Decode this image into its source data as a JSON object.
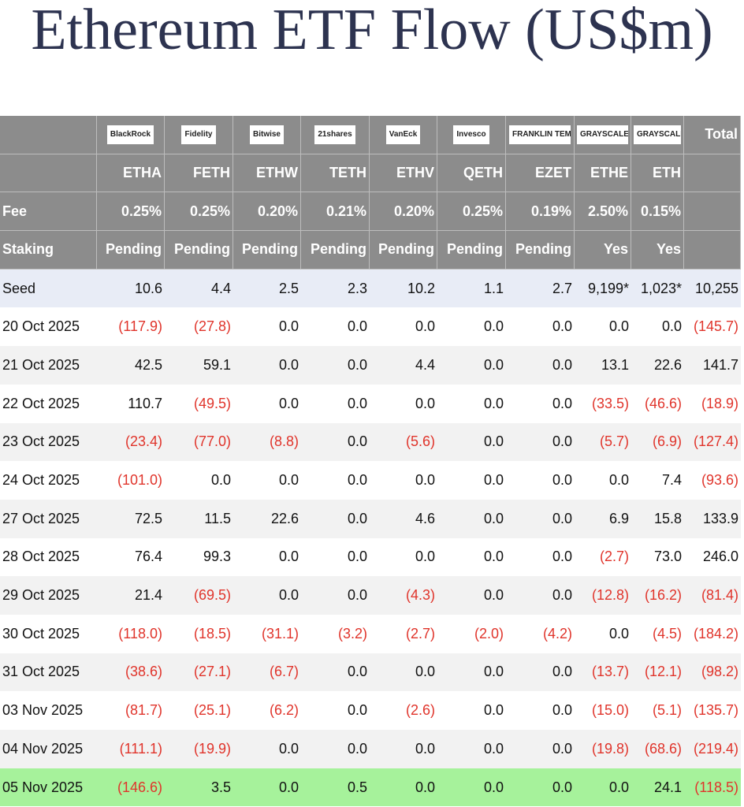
{
  "header": {
    "title": "Ethereum ETF Flow (US$m)"
  },
  "table": {
    "issuers": [
      "BlackRock",
      "Fidelity",
      "Bitwise",
      "21shares",
      "VanEck",
      "Invesco",
      "FRANKLIN TEMPLETON",
      "GRAYSCALE",
      "GRAYSCALE"
    ],
    "total_label": "Total",
    "tickers": [
      "ETHA",
      "FETH",
      "ETHW",
      "TETH",
      "ETHV",
      "QETH",
      "EZET",
      "ETHE",
      "ETH"
    ],
    "fee": {
      "label": "Fee",
      "values": [
        "0.25%",
        "0.25%",
        "0.20%",
        "0.21%",
        "0.20%",
        "0.25%",
        "0.19%",
        "2.50%",
        "0.15%"
      ]
    },
    "staking": {
      "label": "Staking",
      "values": [
        "Pending",
        "Pending",
        "Pending",
        "Pending",
        "Pending",
        "Pending",
        "Pending",
        "Yes",
        "Yes"
      ]
    },
    "rows": [
      [
        "Seed",
        "10.6",
        "4.4",
        "2.5",
        "2.3",
        "10.2",
        "1.1",
        "2.7",
        "9,199*",
        "1,023*",
        "10,255"
      ],
      [
        "20 Oct 2025",
        "(117.9)",
        "(27.8)",
        "0.0",
        "0.0",
        "0.0",
        "0.0",
        "0.0",
        "0.0",
        "0.0",
        "(145.7)"
      ],
      [
        "21 Oct 2025",
        "42.5",
        "59.1",
        "0.0",
        "0.0",
        "4.4",
        "0.0",
        "0.0",
        "13.1",
        "22.6",
        "141.7"
      ],
      [
        "22 Oct 2025",
        "110.7",
        "(49.5)",
        "0.0",
        "0.0",
        "0.0",
        "0.0",
        "0.0",
        "(33.5)",
        "(46.6)",
        "(18.9)"
      ],
      [
        "23 Oct 2025",
        "(23.4)",
        "(77.0)",
        "(8.8)",
        "0.0",
        "(5.6)",
        "0.0",
        "0.0",
        "(5.7)",
        "(6.9)",
        "(127.4)"
      ],
      [
        "24 Oct 2025",
        "(101.0)",
        "0.0",
        "0.0",
        "0.0",
        "0.0",
        "0.0",
        "0.0",
        "0.0",
        "7.4",
        "(93.6)"
      ],
      [
        "27 Oct 2025",
        "72.5",
        "11.5",
        "22.6",
        "0.0",
        "4.6",
        "0.0",
        "0.0",
        "6.9",
        "15.8",
        "133.9"
      ],
      [
        "28 Oct 2025",
        "76.4",
        "99.3",
        "0.0",
        "0.0",
        "0.0",
        "0.0",
        "0.0",
        "(2.7)",
        "73.0",
        "246.0"
      ],
      [
        "29 Oct 2025",
        "21.4",
        "(69.5)",
        "0.0",
        "0.0",
        "(4.3)",
        "0.0",
        "0.0",
        "(12.8)",
        "(16.2)",
        "(81.4)"
      ],
      [
        "30 Oct 2025",
        "(118.0)",
        "(18.5)",
        "(31.1)",
        "(3.2)",
        "(2.7)",
        "(2.0)",
        "(4.2)",
        "0.0",
        "(4.5)",
        "(184.2)"
      ],
      [
        "31 Oct 2025",
        "(38.6)",
        "(27.1)",
        "(6.7)",
        "0.0",
        "0.0",
        "0.0",
        "0.0",
        "(13.7)",
        "(12.1)",
        "(98.2)"
      ],
      [
        "03 Nov 2025",
        "(81.7)",
        "(25.1)",
        "(6.2)",
        "0.0",
        "(2.6)",
        "0.0",
        "0.0",
        "(15.0)",
        "(5.1)",
        "(135.7)"
      ],
      [
        "04 Nov 2025",
        "(111.1)",
        "(19.9)",
        "0.0",
        "0.0",
        "0.0",
        "0.0",
        "0.0",
        "(19.8)",
        "(68.6)",
        "(219.4)"
      ],
      [
        "05 Nov 2025",
        "(146.6)",
        "3.5",
        "0.0",
        "0.5",
        "0.0",
        "0.0",
        "0.0",
        "0.0",
        "24.1",
        "(118.5)"
      ]
    ]
  }
}
